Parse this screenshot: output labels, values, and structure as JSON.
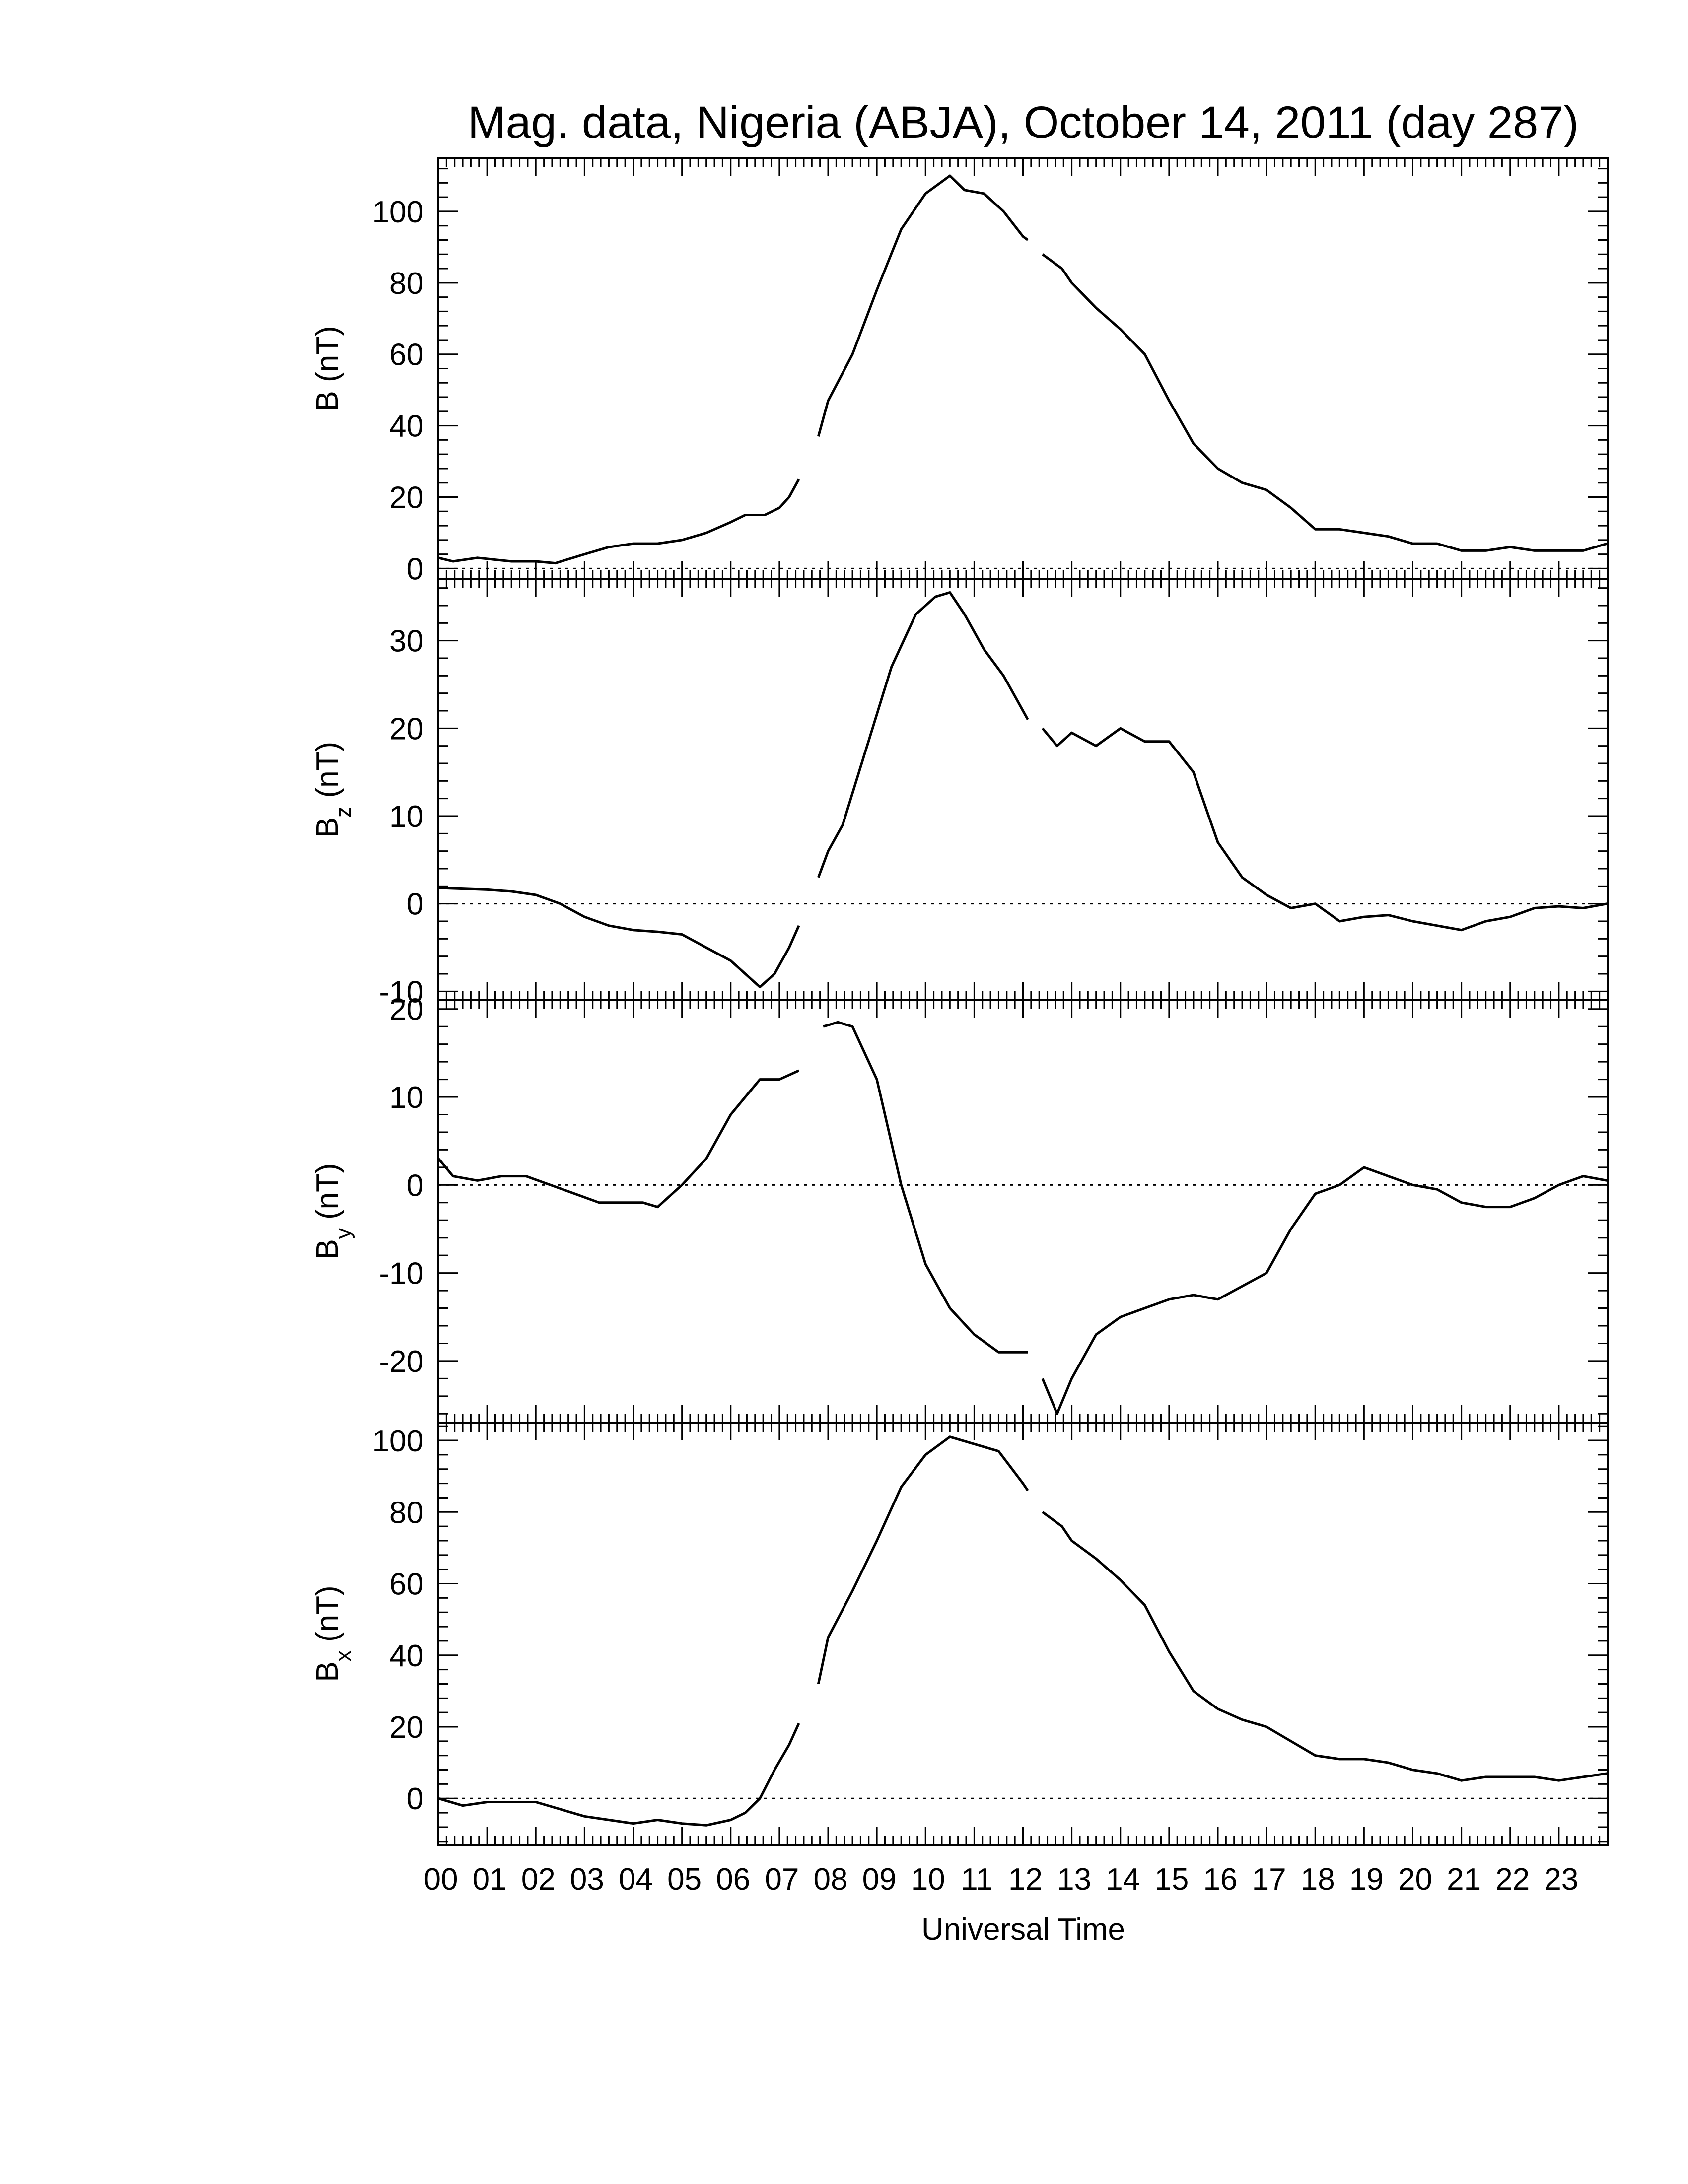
{
  "figure": {
    "title": "Mag. data, Nigeria (ABJA), October 14, 2011 (day 287)",
    "xlabel": "Universal Time",
    "line_color": "#000000",
    "zero_line_color": "#000000"
  },
  "chart_data": [
    {
      "type": "line",
      "panel": "B",
      "ylabel": "B (nT)",
      "ylabel_main": "B",
      "ylabel_sub": "",
      "ylabel_unit": " (nT)",
      "xlim": [
        0,
        24
      ],
      "ylim": [
        -3,
        115
      ],
      "yticks": [
        0,
        20,
        40,
        60,
        80,
        100
      ],
      "zero_line": true,
      "x_hours": [
        0,
        0.3,
        0.8,
        1.5,
        2.0,
        2.4,
        3.0,
        3.5,
        4.0,
        4.5,
        5.0,
        5.5,
        6.0,
        6.3,
        6.7,
        7.0,
        7.2,
        7.4,
        null,
        7.8,
        8.0,
        8.5,
        9.0,
        9.5,
        10.0,
        10.5,
        10.8,
        11.2,
        11.6,
        12.0,
        12.1,
        null,
        12.4,
        12.8,
        13.0,
        13.5,
        14.0,
        14.5,
        15.0,
        15.5,
        16.0,
        16.5,
        17.0,
        17.5,
        18.0,
        18.5,
        19.0,
        19.5,
        20.0,
        20.5,
        21.0,
        21.5,
        22.0,
        22.5,
        23.0,
        23.5,
        23.99
      ],
      "values": [
        3,
        2,
        3,
        2,
        2,
        1.5,
        4,
        6,
        7,
        7,
        8,
        10,
        13,
        15,
        15,
        17,
        20,
        25,
        null,
        37,
        47,
        60,
        78,
        95,
        105,
        110,
        106,
        105,
        100,
        93,
        92,
        null,
        88,
        84,
        80,
        73,
        67,
        60,
        47,
        35,
        28,
        24,
        22,
        17,
        11,
        11,
        10,
        9,
        7,
        7,
        5,
        5,
        6,
        5,
        5,
        5,
        7
      ]
    },
    {
      "type": "line",
      "panel": "Bz",
      "ylabel": "Bz (nT)",
      "ylabel_main": "B",
      "ylabel_sub": "z",
      "ylabel_unit": " (nT)",
      "xlim": [
        0,
        24
      ],
      "ylim": [
        -11,
        37
      ],
      "yticks": [
        -10,
        0,
        10,
        20,
        30
      ],
      "zero_line": true,
      "x_hours": [
        0,
        0.5,
        1.0,
        1.5,
        2.0,
        2.5,
        3.0,
        3.5,
        4.0,
        4.5,
        5.0,
        5.5,
        6.0,
        6.3,
        6.6,
        6.9,
        7.2,
        7.4,
        null,
        7.8,
        8.0,
        8.3,
        8.8,
        9.3,
        9.8,
        10.2,
        10.5,
        10.8,
        11.2,
        11.6,
        12.0,
        12.1,
        null,
        12.4,
        12.7,
        13.0,
        13.5,
        14.0,
        14.5,
        15.0,
        15.5,
        16.0,
        16.5,
        17.0,
        17.5,
        18.0,
        18.5,
        19.0,
        19.5,
        20.0,
        20.5,
        21.0,
        21.5,
        22.0,
        22.5,
        23.0,
        23.5,
        23.99
      ],
      "values": [
        1.8,
        1.7,
        1.6,
        1.4,
        1.0,
        0,
        -1.5,
        -2.5,
        -3,
        -3.2,
        -3.5,
        -5,
        -6.5,
        -8,
        -9.5,
        -8,
        -5,
        -2.5,
        null,
        3,
        6,
        9,
        18,
        27,
        33,
        35,
        35.5,
        33,
        29,
        26,
        22,
        21,
        null,
        20,
        18,
        19.5,
        18,
        20,
        18.5,
        18.5,
        15,
        7,
        3,
        1,
        -0.5,
        0,
        -2,
        -1.5,
        -1.3,
        -2,
        -2.5,
        -3,
        -2,
        -1.5,
        -0.5,
        -0.3,
        -0.5,
        0
      ]
    },
    {
      "type": "line",
      "panel": "By",
      "ylabel": "By (nT)",
      "ylabel_main": "B",
      "ylabel_sub": "y",
      "ylabel_unit": " (nT)",
      "xlim": [
        0,
        24
      ],
      "ylim": [
        -27,
        21
      ],
      "yticks": [
        -20,
        -10,
        0,
        10,
        20
      ],
      "zero_line": true,
      "x_hours": [
        0,
        0.3,
        0.8,
        1.3,
        1.8,
        2.3,
        2.8,
        3.3,
        3.8,
        4.2,
        4.5,
        5.0,
        5.5,
        6.0,
        6.3,
        6.6,
        7.0,
        7.4,
        null,
        7.9,
        8.2,
        8.5,
        9.0,
        9.5,
        10.0,
        10.5,
        11.0,
        11.5,
        11.8,
        12.1,
        null,
        12.4,
        12.7,
        13.0,
        13.5,
        14.0,
        14.5,
        15.0,
        15.5,
        16.0,
        16.5,
        17.0,
        17.5,
        18.0,
        18.5,
        19.0,
        19.5,
        20.0,
        20.5,
        21.0,
        21.5,
        22.0,
        22.5,
        23.0,
        23.5,
        23.99
      ],
      "values": [
        3,
        1,
        0.5,
        1,
        1,
        0,
        -1,
        -2,
        -2,
        -2,
        -2.5,
        0,
        3,
        8,
        10,
        12,
        12,
        13,
        null,
        18,
        18.5,
        18,
        12,
        0,
        -9,
        -14,
        -17,
        -19,
        -19,
        -19,
        null,
        -22,
        -26,
        -22,
        -17,
        -15,
        -14,
        -13,
        -12.5,
        -13,
        -11.5,
        -10,
        -5,
        -1,
        0,
        2,
        1,
        0,
        -0.5,
        -2,
        -2.5,
        -2.5,
        -1.5,
        0,
        1,
        0.5
      ]
    },
    {
      "type": "line",
      "panel": "Bx",
      "ylabel": "Bx (nT)",
      "ylabel_main": "B",
      "ylabel_sub": "x",
      "ylabel_unit": " (nT)",
      "xlim": [
        0,
        24
      ],
      "ylim": [
        -13,
        105
      ],
      "yticks": [
        0,
        20,
        40,
        60,
        80,
        100
      ],
      "zero_line": true,
      "x_hours": [
        0,
        0.5,
        1.0,
        1.5,
        2.0,
        2.5,
        3.0,
        3.5,
        4.0,
        4.5,
        5.0,
        5.5,
        6.0,
        6.3,
        6.6,
        6.9,
        7.2,
        7.4,
        null,
        7.8,
        8.0,
        8.5,
        9.0,
        9.5,
        10.0,
        10.5,
        11.0,
        11.5,
        12.0,
        12.1,
        null,
        12.4,
        12.8,
        13.0,
        13.5,
        14.0,
        14.5,
        15.0,
        15.5,
        16.0,
        16.5,
        17.0,
        17.5,
        18.0,
        18.5,
        19.0,
        19.5,
        20.0,
        20.5,
        21.0,
        21.5,
        22.0,
        22.5,
        23.0,
        23.5,
        23.99
      ],
      "values": [
        0,
        -2,
        -1,
        -1,
        -1,
        -3,
        -5,
        -6,
        -7,
        -6,
        -7,
        -7.5,
        -6,
        -4,
        0,
        8,
        15,
        21,
        null,
        32,
        45,
        58,
        72,
        87,
        96,
        101,
        99,
        97,
        88,
        86,
        null,
        80,
        76,
        72,
        67,
        61,
        54,
        41,
        30,
        25,
        22,
        20,
        16,
        12,
        11,
        11,
        10,
        8,
        7,
        5,
        6,
        6,
        6,
        5,
        6,
        7
      ]
    }
  ]
}
